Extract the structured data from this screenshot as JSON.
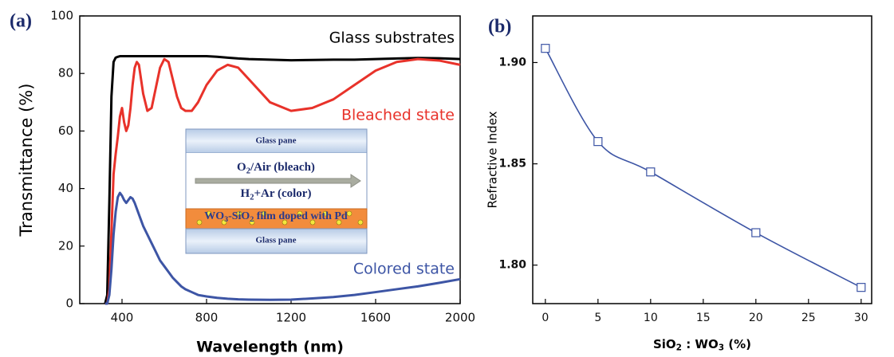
{
  "chart_data": [
    {
      "type": "line",
      "panel_label": "(a)",
      "xlabel": "Wavelength (nm)",
      "ylabel": "Transmittance (%)",
      "xlim": [
        200,
        2000
      ],
      "ylim": [
        0,
        100
      ],
      "xticks": [
        400,
        800,
        1200,
        1600,
        2000
      ],
      "yticks": [
        0,
        20,
        40,
        60,
        80,
        100
      ],
      "x": [
        320,
        330,
        340,
        350,
        360,
        370,
        380,
        390,
        400,
        410,
        420,
        430,
        440,
        450,
        460,
        470,
        480,
        490,
        500,
        520,
        540,
        560,
        580,
        600,
        620,
        640,
        660,
        680,
        700,
        730,
        760,
        800,
        850,
        900,
        950,
        1000,
        1100,
        1200,
        1300,
        1400,
        1500,
        1600,
        1700,
        1800,
        1900,
        2000
      ],
      "series": [
        {
          "name": "Glass substrates",
          "color": "#000000",
          "values": [
            0,
            3,
            35,
            72,
            84,
            85.5,
            85.8,
            86,
            86,
            86,
            86,
            86,
            86,
            86,
            86,
            86,
            86,
            86,
            86,
            86,
            86,
            86,
            86,
            86,
            86,
            86,
            86,
            86,
            86,
            86,
            86,
            86,
            85.8,
            85.5,
            85.2,
            85,
            84.8,
            84.6,
            84.7,
            84.8,
            84.8,
            85,
            85.2,
            85.4,
            85.3,
            85
          ]
        },
        {
          "name": "Bleached state",
          "color": "#e8322a",
          "values": [
            0,
            0,
            5,
            25,
            45,
            52,
            58,
            65,
            68,
            63,
            60,
            62,
            68,
            76,
            82,
            84,
            83,
            78,
            73,
            67,
            68,
            75,
            82,
            85,
            84,
            78,
            72,
            68,
            67,
            67,
            70,
            76,
            81,
            83,
            82,
            78,
            70,
            67,
            68,
            71,
            76,
            81,
            84,
            85,
            84.5,
            83
          ]
        },
        {
          "name": "Colored state",
          "color": "#3d55a5",
          "values": [
            0,
            0,
            3,
            12,
            24,
            32,
            37,
            38.5,
            37.5,
            36,
            35,
            36,
            37,
            36.5,
            35,
            33,
            31,
            29,
            27,
            24,
            21,
            18,
            15,
            13,
            11,
            9,
            7.5,
            6,
            5,
            4,
            3,
            2.5,
            2,
            1.7,
            1.5,
            1.4,
            1.3,
            1.4,
            1.8,
            2.3,
            3,
            4,
            5,
            6,
            7.2,
            8.5
          ]
        }
      ],
      "inset": {
        "top_pane": "Glass pane",
        "gas_bleach": [
          "O",
          "2",
          "/Air (bleach)"
        ],
        "gas_color": [
          "H",
          "2",
          "+Ar (color)"
        ],
        "film": [
          "WO",
          "3",
          "-SiO",
          "2",
          " film doped with Pd"
        ],
        "bottom_pane": "Glass pane"
      }
    },
    {
      "type": "scatter",
      "panel_label": "(b)",
      "xlabel": [
        "SiO",
        "2",
        " : WO",
        "3",
        " (%)"
      ],
      "ylabel": "Refractive Index",
      "xlim": [
        -1.2,
        31
      ],
      "ylim": [
        1.781,
        1.923
      ],
      "xticks": [
        0,
        5,
        10,
        15,
        20,
        25,
        30
      ],
      "yticks": [
        {
          "value": 1.8,
          "label": "1.80"
        },
        {
          "value": 1.85,
          "label": "1.85"
        },
        {
          "value": 1.9,
          "label": "1.90"
        }
      ],
      "x": [
        0,
        5,
        10,
        20,
        30
      ],
      "series": [
        {
          "color": "#3d55a5",
          "values": [
            1.907,
            1.861,
            1.846,
            1.816,
            1.789
          ]
        }
      ],
      "smooth_line": true
    }
  ]
}
